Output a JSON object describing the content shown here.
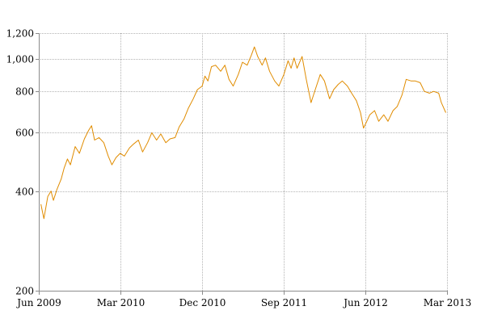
{
  "chart_data": {
    "type": "line",
    "title": "",
    "xlabel": "",
    "ylabel": "",
    "y_scale": "log",
    "ylim": [
      200,
      1200
    ],
    "xlim": [
      "2009-06-01",
      "2013-03-01"
    ],
    "grid": true,
    "legend": "none",
    "y_ticks": [
      {
        "value": 200,
        "label": "200"
      },
      {
        "value": 400,
        "label": "400"
      },
      {
        "value": 600,
        "label": "600"
      },
      {
        "value": 800,
        "label": "800"
      },
      {
        "value": 1000,
        "label": "1,000"
      },
      {
        "value": 1200,
        "label": "1,200"
      }
    ],
    "x_ticks": [
      {
        "value": "2009-06-01",
        "label": "Jun 2009"
      },
      {
        "value": "2010-03-01",
        "label": "Mar 2010"
      },
      {
        "value": "2010-12-01",
        "label": "Dec 2010"
      },
      {
        "value": "2011-09-01",
        "label": "Sep 2011"
      },
      {
        "value": "2012-06-01",
        "label": "Jun 2012"
      },
      {
        "value": "2013-03-01",
        "label": "Mar 2013"
      }
    ],
    "series": [
      {
        "color": "#e08c00",
        "points": [
          [
            "2009-06-08",
            365
          ],
          [
            "2009-06-18",
            330
          ],
          [
            "2009-07-01",
            385
          ],
          [
            "2009-07-12",
            400
          ],
          [
            "2009-07-20",
            375
          ],
          [
            "2009-08-01",
            405
          ],
          [
            "2009-08-15",
            435
          ],
          [
            "2009-08-25",
            470
          ],
          [
            "2009-09-05",
            500
          ],
          [
            "2009-09-15",
            480
          ],
          [
            "2009-10-01",
            545
          ],
          [
            "2009-10-15",
            520
          ],
          [
            "2009-11-01",
            575
          ],
          [
            "2009-11-15",
            610
          ],
          [
            "2009-11-25",
            630
          ],
          [
            "2009-12-05",
            570
          ],
          [
            "2009-12-20",
            580
          ],
          [
            "2010-01-05",
            560
          ],
          [
            "2010-01-20",
            510
          ],
          [
            "2010-02-01",
            480
          ],
          [
            "2010-02-15",
            505
          ],
          [
            "2010-03-01",
            520
          ],
          [
            "2010-03-15",
            510
          ],
          [
            "2010-04-01",
            540
          ],
          [
            "2010-04-15",
            555
          ],
          [
            "2010-05-01",
            570
          ],
          [
            "2010-05-15",
            525
          ],
          [
            "2010-06-01",
            560
          ],
          [
            "2010-06-15",
            600
          ],
          [
            "2010-07-01",
            570
          ],
          [
            "2010-07-15",
            595
          ],
          [
            "2010-08-01",
            560
          ],
          [
            "2010-08-15",
            575
          ],
          [
            "2010-09-01",
            580
          ],
          [
            "2010-09-15",
            625
          ],
          [
            "2010-10-01",
            660
          ],
          [
            "2010-10-15",
            710
          ],
          [
            "2010-11-01",
            760
          ],
          [
            "2010-11-15",
            810
          ],
          [
            "2010-12-01",
            830
          ],
          [
            "2010-12-10",
            890
          ],
          [
            "2010-12-20",
            860
          ],
          [
            "2011-01-01",
            950
          ],
          [
            "2011-01-15",
            960
          ],
          [
            "2011-02-01",
            920
          ],
          [
            "2011-02-15",
            960
          ],
          [
            "2011-03-01",
            870
          ],
          [
            "2011-03-15",
            830
          ],
          [
            "2011-04-01",
            900
          ],
          [
            "2011-04-15",
            980
          ],
          [
            "2011-05-01",
            960
          ],
          [
            "2011-05-15",
            1030
          ],
          [
            "2011-05-25",
            1090
          ],
          [
            "2011-06-05",
            1020
          ],
          [
            "2011-06-20",
            960
          ],
          [
            "2011-07-01",
            1010
          ],
          [
            "2011-07-15",
            920
          ],
          [
            "2011-08-01",
            860
          ],
          [
            "2011-08-15",
            830
          ],
          [
            "2011-09-01",
            900
          ],
          [
            "2011-09-15",
            990
          ],
          [
            "2011-09-25",
            940
          ],
          [
            "2011-10-05",
            1010
          ],
          [
            "2011-10-15",
            940
          ],
          [
            "2011-11-01",
            1020
          ],
          [
            "2011-11-15",
            870
          ],
          [
            "2011-12-01",
            740
          ],
          [
            "2011-12-15",
            810
          ],
          [
            "2012-01-01",
            900
          ],
          [
            "2012-01-15",
            860
          ],
          [
            "2012-02-01",
            760
          ],
          [
            "2012-02-15",
            810
          ],
          [
            "2012-03-01",
            840
          ],
          [
            "2012-03-15",
            860
          ],
          [
            "2012-04-01",
            830
          ],
          [
            "2012-04-15",
            790
          ],
          [
            "2012-05-01",
            750
          ],
          [
            "2012-05-15",
            690
          ],
          [
            "2012-05-25",
            620
          ],
          [
            "2012-06-05",
            650
          ],
          [
            "2012-06-15",
            680
          ],
          [
            "2012-07-01",
            700
          ],
          [
            "2012-07-15",
            650
          ],
          [
            "2012-08-01",
            680
          ],
          [
            "2012-08-15",
            650
          ],
          [
            "2012-09-01",
            700
          ],
          [
            "2012-09-15",
            720
          ],
          [
            "2012-10-01",
            780
          ],
          [
            "2012-10-15",
            870
          ],
          [
            "2012-11-01",
            860
          ],
          [
            "2012-11-15",
            860
          ],
          [
            "2012-12-01",
            850
          ],
          [
            "2012-12-15",
            800
          ],
          [
            "2013-01-01",
            790
          ],
          [
            "2013-01-15",
            800
          ],
          [
            "2013-02-01",
            790
          ],
          [
            "2013-02-10",
            740
          ],
          [
            "2013-02-25",
            690
          ]
        ]
      }
    ]
  }
}
